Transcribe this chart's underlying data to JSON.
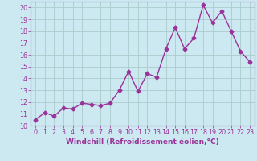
{
  "x": [
    0,
    1,
    2,
    3,
    4,
    5,
    6,
    7,
    8,
    9,
    10,
    11,
    12,
    13,
    14,
    15,
    16,
    17,
    18,
    19,
    20,
    21,
    22,
    23
  ],
  "y": [
    10.5,
    11.1,
    10.8,
    11.5,
    11.4,
    11.9,
    11.8,
    11.7,
    11.9,
    13.0,
    14.6,
    12.9,
    14.4,
    14.1,
    16.5,
    18.3,
    16.5,
    17.4,
    20.2,
    18.7,
    19.7,
    18.0,
    16.3,
    15.4
  ],
  "line_color": "#993399",
  "marker": "D",
  "marker_size": 2.5,
  "linewidth": 1.0,
  "xlabel": "Windchill (Refroidissement éolien,°C)",
  "xlabel_fontsize": 6.5,
  "ylim": [
    10,
    20.5
  ],
  "xlim": [
    -0.5,
    23.5
  ],
  "yticks": [
    10,
    11,
    12,
    13,
    14,
    15,
    16,
    17,
    18,
    19,
    20
  ],
  "xticks": [
    0,
    1,
    2,
    3,
    4,
    5,
    6,
    7,
    8,
    9,
    10,
    11,
    12,
    13,
    14,
    15,
    16,
    17,
    18,
    19,
    20,
    21,
    22,
    23
  ],
  "background_color": "#cce8f0",
  "grid_color": "#aacccc",
  "tick_label_color": "#993399",
  "tick_fontsize": 5.8,
  "spine_color": "#993399"
}
